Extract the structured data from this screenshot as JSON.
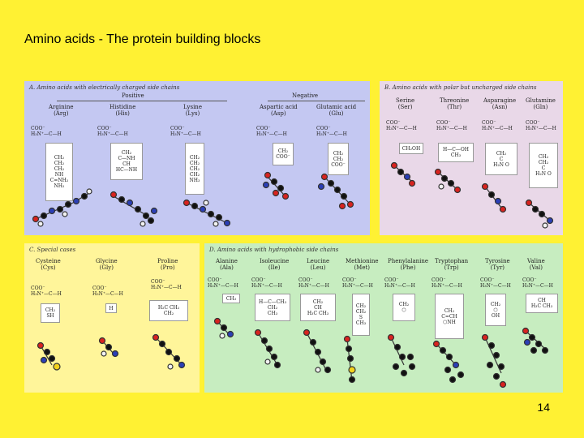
{
  "slide": {
    "title": "Amino acids - The protein building blocks",
    "page_number": "14"
  },
  "panels": {
    "a": {
      "label": "A.  Amino acids with electrically charged side chains",
      "positive_label": "Positive",
      "negative_label": "Negative",
      "acids": [
        {
          "name": "Arginine",
          "abbr": "(Arg)",
          "side_chain": "CH2 CH2 CH2 NH C=NH2 NH2"
        },
        {
          "name": "Histidine",
          "abbr": "(His)",
          "side_chain": "CH2 ring NH CH HC NH"
        },
        {
          "name": "Lysine",
          "abbr": "(Lys)",
          "side_chain": "CH2 CH2 CH2 CH2 NH3"
        },
        {
          "name": "Aspartic acid",
          "abbr": "(Asp)",
          "side_chain": "CH2 COO"
        },
        {
          "name": "Glutamic acid",
          "abbr": "(Glu)",
          "side_chain": "CH2 CH2 COO"
        }
      ],
      "bg": "#C4C8F2"
    },
    "b": {
      "label": "B.  Amino acids with polar but uncharged side chains",
      "acids": [
        {
          "name": "Serine",
          "abbr": "(Ser)",
          "side_chain": "CH2OH"
        },
        {
          "name": "Threonine",
          "abbr": "(Thr)",
          "side_chain": "H—C—OH CH3"
        },
        {
          "name": "Asparagine",
          "abbr": "(Asn)",
          "side_chain": "CH2 C H2N O"
        },
        {
          "name": "Glutamine",
          "abbr": "(Gln)",
          "side_chain": "CH2 CH2 C H2N O"
        }
      ],
      "bg": "#E9D8E8"
    },
    "c": {
      "label": "C.  Special cases",
      "acids": [
        {
          "name": "Cysteine",
          "abbr": "(Cys)",
          "side_chain": "CH2 SH"
        },
        {
          "name": "Glycine",
          "abbr": "(Gly)",
          "side_chain": "H"
        },
        {
          "name": "Proline",
          "abbr": "(Pro)",
          "side_chain": "H2C CH2 CH2"
        }
      ],
      "bg": "#FFF59A"
    },
    "d": {
      "label": "D.  Amino acids with hydrophobic side chains",
      "acids": [
        {
          "name": "Alanine",
          "abbr": "(Ala)",
          "side_chain": "CH3"
        },
        {
          "name": "Isoleucine",
          "abbr": "(Ile)",
          "side_chain": "H—C—CH3 CH2 CH3"
        },
        {
          "name": "Leucine",
          "abbr": "(Leu)",
          "side_chain": "CH2 CH H3C CH3"
        },
        {
          "name": "Methionine",
          "abbr": "(Met)",
          "side_chain": "CH2 CH2 S CH3"
        },
        {
          "name": "Phenylalanine",
          "abbr": "(Phe)",
          "side_chain": "CH2 ring"
        },
        {
          "name": "Tryptophan",
          "abbr": "(Trp)",
          "side_chain": "CH2 C=CH indole"
        },
        {
          "name": "Tyrosine",
          "abbr": "(Tyr)",
          "side_chain": "CH2 ring OH"
        },
        {
          "name": "Valine",
          "abbr": "(Val)",
          "side_chain": "CH H3C CH3"
        }
      ],
      "bg": "#C7EDC0"
    }
  },
  "colors": {
    "slide_bg": "#FFF133",
    "atom_carbon": "#111111",
    "atom_oxygen": "#D8231F",
    "atom_nitrogen": "#2B3FB6",
    "atom_hydrogen": "#F2F2F2",
    "atom_sulfur": "#F3D21C"
  }
}
